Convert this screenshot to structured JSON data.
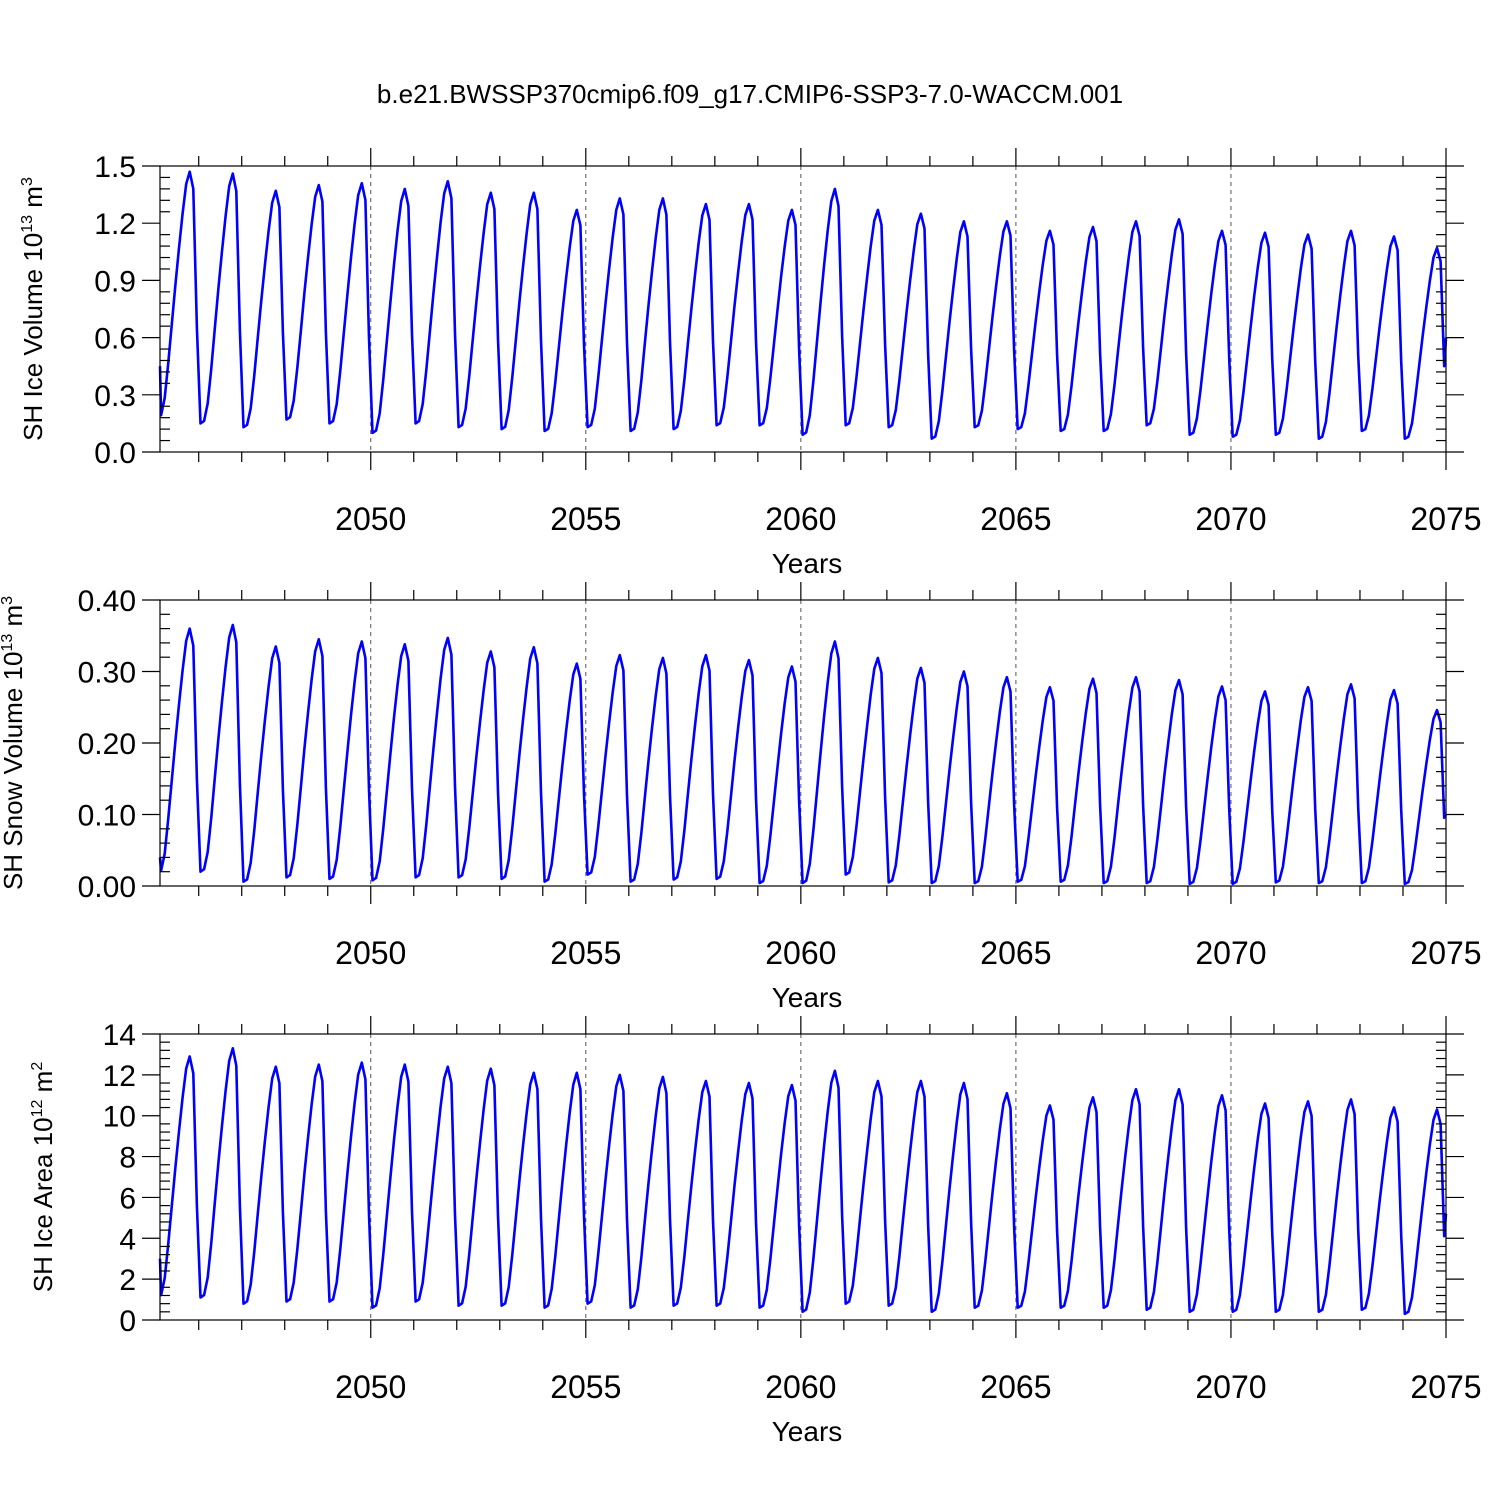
{
  "chart_data": {
    "title": "b.e21.BWSSP370cmip6.f09_g17.CMIP6-SSP3-7.0-WACCM.001",
    "line_color": "#0000ff",
    "x_start": 2045.1,
    "x_end": 2075.0,
    "xlim": [
      2045.1,
      2075.0
    ],
    "x_ticks": [
      2050,
      2055,
      2060,
      2065,
      2070,
      2075
    ],
    "x_tick_labels": [
      "2050",
      "2055",
      "2060",
      "2065",
      "2070",
      "2075"
    ],
    "dashed_grid_years": [
      2050,
      2055,
      2060,
      2065,
      2070
    ],
    "panels": [
      {
        "type": "line",
        "ylabel": "SH Ice Volume 10",
        "ylabel_exp": "13",
        "ylabel_unit": " m",
        "ylabel_unit_exp": "3",
        "xlabel": "Years",
        "ylim": [
          0,
          1.5
        ],
        "y_ticks": [
          0,
          0.3,
          0.6,
          0.9,
          1.2,
          1.5
        ],
        "y_tick_labels": [
          "0.0",
          "0.3",
          "0.6",
          "0.9",
          "1.2",
          "1.5"
        ],
        "start_value": 0.45,
        "end_value": 0.6,
        "annual_peaks": [
          1.47,
          1.46,
          1.37,
          1.4,
          1.41,
          1.38,
          1.42,
          1.36,
          1.36,
          1.27,
          1.33,
          1.33,
          1.3,
          1.3,
          1.27,
          1.38,
          1.27,
          1.25,
          1.21,
          1.21,
          1.16,
          1.18,
          1.21,
          1.22,
          1.16,
          1.15,
          1.14,
          1.16,
          1.13,
          1.07
        ],
        "annual_troughs": [
          0.18,
          0.15,
          0.13,
          0.17,
          0.15,
          0.1,
          0.15,
          0.13,
          0.12,
          0.11,
          0.13,
          0.11,
          0.12,
          0.14,
          0.14,
          0.09,
          0.14,
          0.13,
          0.07,
          0.13,
          0.12,
          0.11,
          0.11,
          0.14,
          0.09,
          0.08,
          0.09,
          0.07,
          0.11,
          0.07
        ]
      },
      {
        "type": "line",
        "ylabel": "SH Snow Volume 10",
        "ylabel_exp": "13",
        "ylabel_unit": " m",
        "ylabel_unit_exp": "3",
        "xlabel": "Years",
        "ylim": [
          0,
          0.4
        ],
        "y_ticks": [
          0,
          0.1,
          0.2,
          0.3,
          0.4
        ],
        "y_tick_labels": [
          "0.00",
          "0.10",
          "0.20",
          "0.30",
          "0.40"
        ],
        "start_value": 0.04,
        "end_value": 0.1,
        "annual_peaks": [
          0.36,
          0.365,
          0.335,
          0.345,
          0.342,
          0.338,
          0.347,
          0.328,
          0.334,
          0.311,
          0.323,
          0.319,
          0.323,
          0.316,
          0.307,
          0.342,
          0.319,
          0.305,
          0.3,
          0.292,
          0.278,
          0.29,
          0.292,
          0.288,
          0.279,
          0.272,
          0.278,
          0.282,
          0.274,
          0.246
        ],
        "annual_troughs": [
          0.018,
          0.02,
          0.006,
          0.012,
          0.01,
          0.008,
          0.012,
          0.012,
          0.01,
          0.006,
          0.016,
          0.006,
          0.009,
          0.01,
          0.004,
          0.004,
          0.016,
          0.005,
          0.004,
          0.004,
          0.006,
          0.006,
          0.004,
          0.004,
          0.003,
          0.003,
          0.005,
          0.004,
          0.004,
          0.003
        ]
      },
      {
        "type": "line",
        "ylabel": "SH Ice Area 10",
        "ylabel_exp": "12",
        "ylabel_unit": " m",
        "ylabel_unit_exp": "2",
        "xlabel": "Years",
        "ylim": [
          0,
          14
        ],
        "y_ticks": [
          0,
          2,
          4,
          6,
          8,
          10,
          12,
          14
        ],
        "y_tick_labels": [
          "0",
          "2",
          "4",
          "6",
          "8",
          "10",
          "12",
          "14"
        ],
        "start_value": 3.0,
        "end_value": 5.2,
        "annual_peaks": [
          12.9,
          13.3,
          12.4,
          12.5,
          12.6,
          12.5,
          12.4,
          12.3,
          12.1,
          12.1,
          12.0,
          11.9,
          11.7,
          11.6,
          11.5,
          12.2,
          11.7,
          11.7,
          11.6,
          11.1,
          10.5,
          10.9,
          11.3,
          11.3,
          11.0,
          10.6,
          10.7,
          10.8,
          10.4,
          10.3
        ],
        "annual_troughs": [
          1.1,
          1.1,
          0.8,
          0.9,
          0.9,
          0.6,
          0.9,
          0.7,
          0.7,
          0.6,
          0.8,
          0.6,
          0.7,
          0.7,
          0.6,
          0.4,
          0.8,
          0.7,
          0.4,
          0.6,
          0.6,
          0.6,
          0.6,
          0.5,
          0.4,
          0.4,
          0.4,
          0.4,
          0.5,
          0.3
        ]
      }
    ]
  }
}
